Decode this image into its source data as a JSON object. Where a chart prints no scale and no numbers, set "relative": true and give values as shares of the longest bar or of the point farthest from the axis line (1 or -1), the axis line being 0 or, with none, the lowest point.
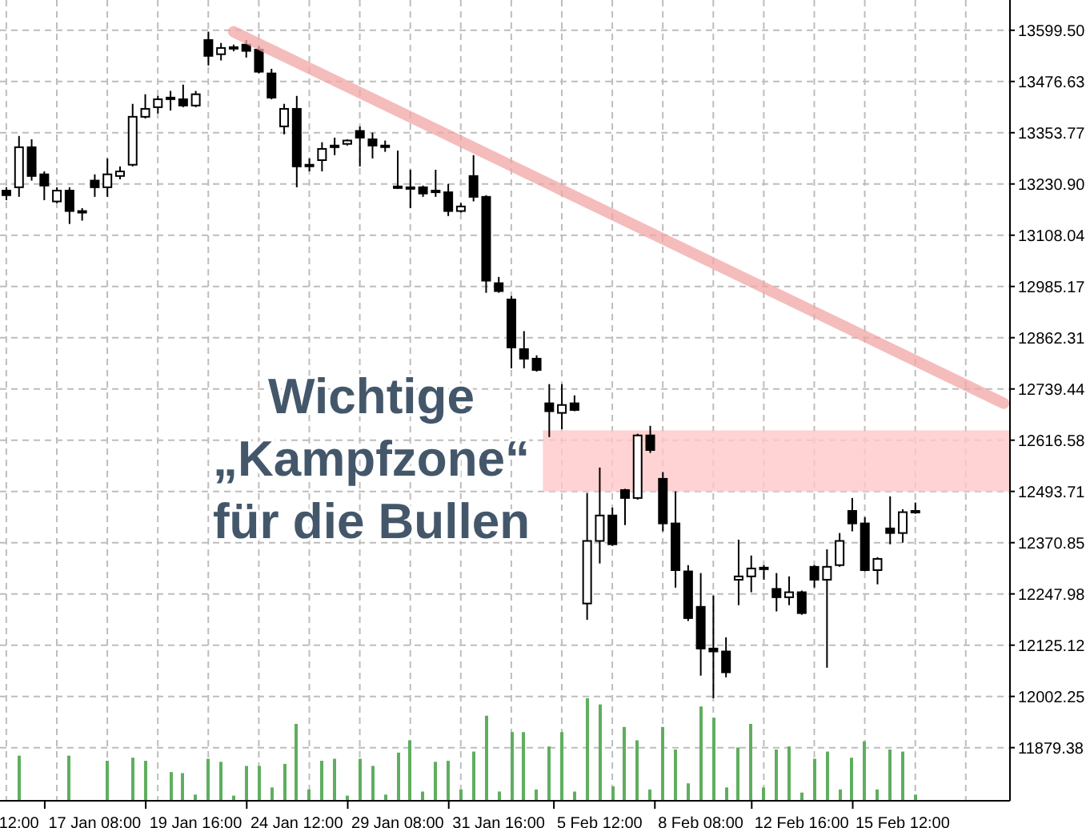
{
  "chart_data": [
    {
      "type": "candlestick",
      "categories": [
        null,
        "12:00",
        null,
        null,
        null,
        null,
        null,
        "17 Jan 08:00",
        null,
        null,
        null,
        null,
        null,
        null,
        null,
        "19 Jan 16:00",
        null,
        null,
        null,
        null,
        null,
        null,
        null,
        "24 Jan 12:00",
        null,
        null,
        null,
        null,
        null,
        null,
        null,
        "29 Jan 08:00",
        null,
        null,
        null,
        null,
        null,
        null,
        null,
        "31 Jan 16:00",
        null,
        null,
        null,
        null,
        null,
        null,
        null,
        "5 Feb 12:00",
        null,
        null,
        null,
        null,
        null,
        null,
        null,
        "8 Feb 08:00",
        null,
        null,
        null,
        null,
        null,
        null,
        null,
        "12 Feb 16:00",
        null,
        null,
        null,
        null,
        null,
        null,
        null,
        "15 Feb 12:00",
        null,
        null,
        null,
        null,
        null,
        null,
        null,
        null
      ],
      "ohlc": [
        [
          13215,
          13223,
          13192,
          13204
        ],
        [
          13223,
          13346,
          13200,
          13319
        ],
        [
          13319,
          13338,
          13239,
          13250
        ],
        [
          13254,
          13261,
          13192,
          13227
        ],
        [
          13189,
          13223,
          13185,
          13215
        ],
        [
          13215,
          13223,
          13135,
          13166
        ],
        [
          13166,
          13173,
          13143,
          13164
        ],
        [
          13239,
          13254,
          13200,
          13223
        ],
        [
          13223,
          13292,
          13200,
          13254
        ],
        [
          13250,
          13273,
          13242,
          13261
        ],
        [
          13277,
          13423,
          13273,
          13392
        ],
        [
          13392,
          13446,
          13388,
          13411
        ],
        [
          13415,
          13442,
          13400,
          13434
        ],
        [
          13436,
          13454,
          13407,
          13438
        ],
        [
          13434,
          13469,
          13415,
          13419
        ],
        [
          13419,
          13454,
          13415,
          13446
        ],
        [
          13576,
          13596,
          13515,
          13538
        ],
        [
          13542,
          13569,
          13527,
          13557
        ],
        [
          13557,
          13565,
          13549,
          13559
        ],
        [
          13565,
          13576,
          13534,
          13550
        ],
        [
          13553,
          13561,
          13496,
          13500
        ],
        [
          13496,
          13507,
          13434,
          13438
        ],
        [
          13369,
          13423,
          13350,
          13411
        ],
        [
          13411,
          13442,
          13223,
          13273
        ],
        [
          13277,
          13292,
          13261,
          13275
        ],
        [
          13288,
          13331,
          13261,
          13315
        ],
        [
          13323,
          13342,
          13300,
          13319
        ],
        [
          13327,
          13338,
          13323,
          13335
        ],
        [
          13358,
          13369,
          13273,
          13342
        ],
        [
          13338,
          13354,
          13292,
          13323
        ],
        [
          13323,
          13335,
          13308,
          13321
        ],
        [
          13225,
          13311,
          13219,
          13223
        ],
        [
          13223,
          13265,
          13173,
          13221
        ],
        [
          13223,
          13227,
          13200,
          13208
        ],
        [
          13215,
          13265,
          13200,
          13211
        ],
        [
          13211,
          13231,
          13154,
          13166
        ],
        [
          13166,
          13185,
          13162,
          13177
        ],
        [
          13250,
          13300,
          13189,
          13200
        ],
        [
          13200,
          13204,
          12970,
          12999
        ],
        [
          12993,
          13008,
          12970,
          12974
        ],
        [
          12954,
          12962,
          12789,
          12839
        ],
        [
          12835,
          12878,
          12789,
          12812
        ],
        [
          12812,
          12820,
          12781,
          12785
        ],
        [
          12705,
          12751,
          12624,
          12686
        ],
        [
          12682,
          12751,
          12643,
          12701
        ],
        [
          12705,
          12724,
          12686,
          12689
        ],
        [
          12225,
          12490,
          12186,
          12375
        ],
        [
          12375,
          12551,
          12321,
          12436
        ],
        [
          12436,
          12455,
          12363,
          12367
        ],
        [
          12497,
          12500,
          12413,
          12478
        ],
        [
          12478,
          12632,
          12474,
          12628
        ],
        [
          12628,
          12651,
          12586,
          12593
        ],
        [
          12524,
          12540,
          12398,
          12417
        ],
        [
          12417,
          12494,
          12263,
          12305
        ],
        [
          12302,
          12317,
          12183,
          12190
        ],
        [
          12217,
          12298,
          12052,
          12117
        ],
        [
          12117,
          12244,
          11998,
          12110
        ],
        [
          12110,
          12144,
          12048,
          12060
        ],
        [
          12282,
          12378,
          12221,
          12290
        ],
        [
          12290,
          12340,
          12252,
          12309
        ],
        [
          12309,
          12317,
          12282,
          12311
        ],
        [
          12260,
          12298,
          12206,
          12240
        ],
        [
          12240,
          12290,
          12221,
          12252
        ],
        [
          12252,
          12256,
          12198,
          12202
        ],
        [
          12313,
          12317,
          12263,
          12282
        ],
        [
          12282,
          12355,
          12071,
          12313
        ],
        [
          12317,
          12394,
          12313,
          12375
        ],
        [
          12447,
          12478,
          12398,
          12417
        ],
        [
          12417,
          12432,
          12302,
          12305
        ],
        [
          12305,
          12336,
          12271,
          12332
        ],
        [
          12405,
          12482,
          12367,
          12394
        ],
        [
          12394,
          12451,
          12371,
          12444
        ],
        [
          12444,
          12467,
          12440,
          12447
        ],
        null,
        null,
        null,
        null,
        null,
        null,
        null
      ],
      "series": [
        {
          "type": "line",
          "color": "#f2a6a6",
          "values": [
            null,
            null,
            null,
            null,
            null,
            null,
            null,
            null,
            null,
            null,
            null,
            null,
            null,
            null,
            null,
            null,
            null,
            null,
            13596,
            null,
            null,
            null,
            null,
            null,
            null,
            null,
            null,
            null,
            null,
            null,
            null,
            null,
            null,
            null,
            null,
            null,
            null,
            null,
            null,
            null,
            null,
            null,
            null,
            null,
            null,
            null,
            null,
            null,
            null,
            null,
            null,
            null,
            null,
            null,
            null,
            null,
            null,
            null,
            null,
            null,
            null,
            null,
            null,
            null,
            null,
            null,
            null,
            null,
            null,
            null,
            null,
            null,
            null,
            null,
            null,
            null,
            null,
            null,
            null,
            12705
          ]
        }
      ],
      "ylim": [
        11752,
        13672
      ],
      "yticks": [
        11879.38,
        12002.25,
        12125.12,
        12247.98,
        12370.85,
        12493.71,
        12616.58,
        12739.44,
        12862.31,
        12985.17,
        13108.04,
        {
          "value": 13230.9,
          "label": "13230.90"
        },
        13353.77,
        13476.63,
        {
          "value": 13599.5,
          "label": "13599.50"
        }
      ],
      "bands": [
        {
          "axis": "y",
          "from": 12493.71,
          "to": 12640,
          "color": "#ffc8c8"
        }
      ],
      "annotations": [
        "Wichtige\n„Kampfzone“\nfür die Bullen"
      ],
      "grid": true
    },
    {
      "type": "bar",
      "relative": true,
      "color": "#5fae5f",
      "values": [
        null,
        0.44,
        null,
        null,
        null,
        0.44,
        null,
        null,
        0.39,
        null,
        0.42,
        0.39,
        null,
        0.28,
        0.27,
        0.06,
        0.41,
        0.38,
        0.05,
        0.34,
        0.34,
        0.13,
        0.36,
        0.75,
        0.11,
        0.39,
        0.41,
        0.05,
        0.41,
        0.34,
        0.06,
        0.47,
        0.59,
        0.09,
        0.38,
        0.39,
        0.11,
        0.48,
        0.83,
        0.09,
        0.67,
        0.67,
        0.11,
        0.53,
        0.67,
        0.09,
        1,
        0.94,
        0.14,
        0.72,
        0.59,
        0.11,
        0.72,
        0.5,
        0.17,
        0.92,
        0.81,
        0.13,
        0.52,
        0.75,
        0.13,
        0.5,
        0.53,
        0.08,
        0.41,
        0.48,
        0.11,
        0.42,
        0.58,
        0.11,
        0.5,
        0.48,
        0.06,
        null,
        null,
        null,
        null,
        null,
        null,
        null
      ]
    }
  ]
}
